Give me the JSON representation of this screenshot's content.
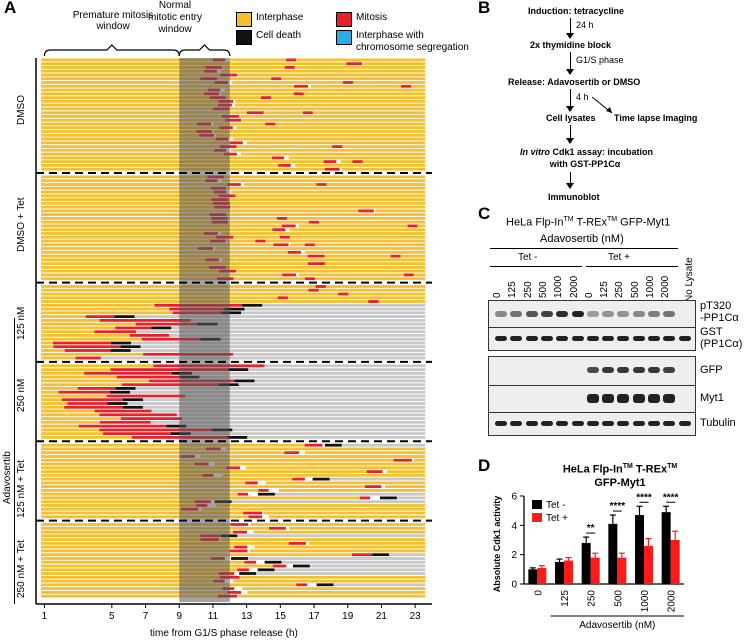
{
  "panels": {
    "a": "A",
    "b": "B",
    "c": "C",
    "d": "D"
  },
  "panel_a": {
    "window_premature": [
      "Premature mitosis",
      "window"
    ],
    "window_normal": [
      "Normal",
      "mitotic entry",
      "window"
    ],
    "legend": [
      {
        "label": "Interphase",
        "color": "#f5bf2f"
      },
      {
        "label": "Mitosis",
        "color": "#e8202a"
      },
      {
        "label": "Cell death",
        "color": "#111111"
      },
      {
        "label": "Interphase with",
        "label2": "chromosome segregation",
        "color": "#29aee4"
      }
    ],
    "groups": [
      {
        "label": "DMSO",
        "rows": 30,
        "mode": "dmso"
      },
      {
        "label": "DMSO + Tet",
        "rows": 28,
        "mode": "dmso"
      },
      {
        "label": "125 nM",
        "rows": 20,
        "mode": "drug"
      },
      {
        "label": "250 nM",
        "rows": 20,
        "mode": "drugstrong"
      },
      {
        "label": "125 nM + Tet",
        "rows": 20,
        "mode": "tet"
      },
      {
        "label": "250 nM + Tet",
        "rows": 20,
        "mode": "tet"
      }
    ],
    "adavosertib_label": "Adavosertib",
    "x_ticks": [
      "1",
      "5",
      "7",
      "9",
      "11",
      "13",
      "15",
      "17",
      "19",
      "21",
      "23"
    ],
    "x_tick_values": [
      1,
      5,
      7,
      9,
      11,
      13,
      15,
      17,
      19,
      21,
      23
    ],
    "x_label": "time from G1/S phase release (h)",
    "x_range": [
      0.5,
      24
    ],
    "premature_range": [
      1,
      9
    ],
    "normal_range": [
      9,
      12
    ]
  },
  "panel_b": {
    "steps": [
      {
        "text": "Induction: tetracycline",
        "arrow": "24 h"
      },
      {
        "text": "2x thymidine block",
        "arrow": "G1/S phase"
      },
      {
        "text": "Release: Adavosertib or DMSO",
        "arrow": "4 h"
      },
      {
        "text": "Cell lysates",
        "side": "Time lapse Imaging"
      },
      {
        "text_italic": "In vitro",
        "text": " Cdk1 assay: incubation",
        "text2": "with GST-PP1Cα"
      },
      {
        "text": "Immunoblot"
      }
    ]
  },
  "panel_c": {
    "title_pre": "HeLa Flp-In",
    "tm1": "TM",
    "title_mid": " T-REx",
    "tm2": "TM",
    "title_post": " GFP-Myt1",
    "treatment": "Adavosertib (nM)",
    "tet_minus": "Tet -",
    "tet_plus": "Tet +",
    "lanes": [
      "0",
      "125",
      "250",
      "500",
      "1000",
      "2000",
      "0",
      "125",
      "250",
      "500",
      "1000",
      "2000"
    ],
    "no_lysate": "No Lysate",
    "blots": [
      {
        "label": "pT320",
        "label2": "-PP1Cα"
      },
      {
        "label": "GST",
        "label2": "(PP1Cα)"
      },
      {
        "label": "GFP"
      },
      {
        "label": "Myt1"
      },
      {
        "label": "Tubulin"
      }
    ]
  },
  "chart_data": {
    "type": "bar",
    "title_pre": "HeLa Flp-In",
    "tm1": "TM",
    "title_mid": " T-REx",
    "tm2": "TM",
    "title_line2": "GFP-Myt1",
    "ylabel": "Absolute Cdk1 activity",
    "xlabel": "Adavosertib (nM)",
    "categories": [
      "0",
      "125",
      "250",
      "500",
      "1000",
      "2000"
    ],
    "ylim": [
      0,
      6
    ],
    "yticks": [
      "0",
      "2",
      "4",
      "6"
    ],
    "ytick_values": [
      0,
      2,
      4,
      6
    ],
    "series": [
      {
        "name": "Tet -",
        "color": "#000000",
        "values": [
          1.0,
          1.5,
          2.8,
          4.1,
          4.7,
          4.9
        ],
        "errors": [
          0.1,
          0.2,
          0.4,
          0.6,
          0.6,
          0.4
        ]
      },
      {
        "name": "Tet +",
        "color": "#ff1a1a",
        "values": [
          1.1,
          1.6,
          1.8,
          1.8,
          2.6,
          3.0
        ],
        "errors": [
          0.15,
          0.2,
          0.3,
          0.3,
          0.5,
          0.6
        ]
      }
    ],
    "significance": [
      {
        "index": 2,
        "label": "**"
      },
      {
        "index": 3,
        "label": "****"
      },
      {
        "index": 4,
        "label": "****"
      },
      {
        "index": 5,
        "label": "****"
      }
    ]
  }
}
